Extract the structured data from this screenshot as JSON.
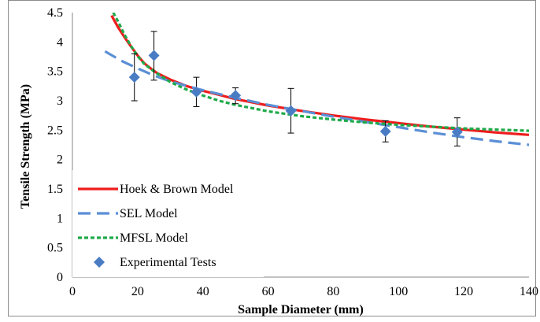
{
  "chart_data": {
    "type": "line",
    "title": "",
    "xlabel": "Sample Diameter (mm)",
    "ylabel": "Tensile Strength (MPa)",
    "xlim": [
      0,
      140
    ],
    "ylim": [
      0,
      4.5
    ],
    "x_ticks": [
      0,
      20,
      40,
      60,
      80,
      100,
      120,
      140
    ],
    "y_ticks": [
      0,
      0.5,
      1,
      1.5,
      2,
      2.5,
      3,
      3.5,
      4,
      4.5
    ],
    "grid": false,
    "legend_position": "bottom-left",
    "series": [
      {
        "name": "Hoek & Brown Model",
        "kind": "line",
        "style": "solid",
        "color": "#ee1c1c",
        "points": [
          [
            12,
            4.45
          ],
          [
            14,
            4.25
          ],
          [
            16,
            4.08
          ],
          [
            18,
            3.92
          ],
          [
            20,
            3.77
          ],
          [
            22,
            3.64
          ],
          [
            24,
            3.55
          ],
          [
            26,
            3.47
          ],
          [
            30,
            3.36
          ],
          [
            35,
            3.25
          ],
          [
            40,
            3.17
          ],
          [
            45,
            3.1
          ],
          [
            50,
            3.03
          ],
          [
            60,
            2.92
          ],
          [
            70,
            2.83
          ],
          [
            80,
            2.75
          ],
          [
            90,
            2.68
          ],
          [
            100,
            2.62
          ],
          [
            110,
            2.56
          ],
          [
            120,
            2.51
          ],
          [
            130,
            2.46
          ],
          [
            140,
            2.42
          ]
        ]
      },
      {
        "name": "SEL Model",
        "kind": "line",
        "style": "dashed",
        "color": "#5b8fd6",
        "points": [
          [
            10,
            3.84
          ],
          [
            15,
            3.68
          ],
          [
            20,
            3.55
          ],
          [
            25,
            3.43
          ],
          [
            30,
            3.33
          ],
          [
            40,
            3.18
          ],
          [
            50,
            3.05
          ],
          [
            60,
            2.93
          ],
          [
            70,
            2.83
          ],
          [
            80,
            2.73
          ],
          [
            90,
            2.64
          ],
          [
            100,
            2.55
          ],
          [
            110,
            2.46
          ],
          [
            120,
            2.38
          ],
          [
            130,
            2.31
          ],
          [
            140,
            2.25
          ]
        ]
      },
      {
        "name": "MFSL Model",
        "kind": "line",
        "style": "dotted",
        "color": "#1faa4a",
        "points": [
          [
            12.5,
            4.5
          ],
          [
            14,
            4.35
          ],
          [
            16,
            4.12
          ],
          [
            18,
            3.93
          ],
          [
            20,
            3.76
          ],
          [
            22,
            3.63
          ],
          [
            25,
            3.5
          ],
          [
            30,
            3.32
          ],
          [
            35,
            3.19
          ],
          [
            40,
            3.09
          ],
          [
            45,
            3.0
          ],
          [
            50,
            2.93
          ],
          [
            60,
            2.82
          ],
          [
            70,
            2.74
          ],
          [
            80,
            2.68
          ],
          [
            90,
            2.63
          ],
          [
            100,
            2.59
          ],
          [
            110,
            2.56
          ],
          [
            120,
            2.53
          ],
          [
            130,
            2.51
          ],
          [
            140,
            2.49
          ]
        ]
      },
      {
        "name": "Experimental Tests",
        "kind": "scatter",
        "marker": "diamond",
        "color": "#4a7cc4",
        "points": [
          {
            "x": 19,
            "y": 3.4,
            "err_low": 3.0,
            "err_high": 3.8
          },
          {
            "x": 25,
            "y": 3.77,
            "err_low": 3.35,
            "err_high": 4.18
          },
          {
            "x": 38,
            "y": 3.15,
            "err_low": 2.9,
            "err_high": 3.4
          },
          {
            "x": 50,
            "y": 3.09,
            "err_low": 2.95,
            "err_high": 3.22
          },
          {
            "x": 67,
            "y": 2.83,
            "err_low": 2.45,
            "err_high": 3.21
          },
          {
            "x": 96,
            "y": 2.48,
            "err_low": 2.3,
            "err_high": 2.66
          },
          {
            "x": 118,
            "y": 2.47,
            "err_low": 2.23,
            "err_high": 2.71
          }
        ]
      }
    ]
  }
}
